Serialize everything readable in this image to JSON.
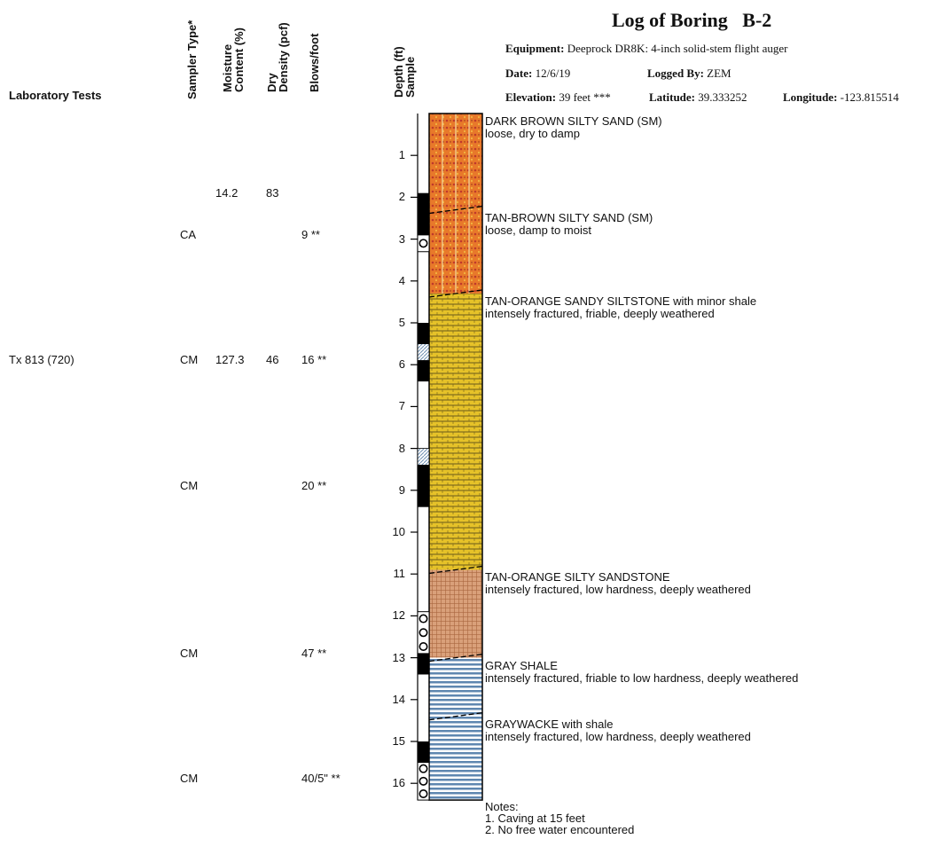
{
  "header": {
    "title": "Log of Boring",
    "boring_id": "B-2",
    "equipment_label": "Equipment:",
    "equipment_value": "Deeprock DR8K: 4-inch solid-stem flight auger",
    "date_label": "Date:",
    "date_value": "12/6/19",
    "logged_by_label": "Logged By:",
    "logged_by_value": "ZEM",
    "elevation_label": "Elevation:",
    "elevation_value": "39 feet ***",
    "latitude_label": "Latitude:",
    "latitude_value": "39.333252",
    "longitude_label": "Longitude:",
    "longitude_value": "-123.815514"
  },
  "columns": {
    "lab_tests": "Laboratory Tests",
    "sampler_type": "Sampler Type*",
    "moisture": "Moisture Content (%)",
    "moisture_line1": "Moisture",
    "moisture_line2": "Content (%)",
    "dry_density": "Dry Density (pcf)",
    "dry_line1": "Dry",
    "dry_line2": "Density (pcf)",
    "blows": "Blows/foot",
    "depth": "Depth (ft)",
    "sample": "Sample"
  },
  "lab_rows": [
    {
      "depth": 1.9,
      "lab_test": "",
      "sampler": "",
      "moisture": "14.2",
      "density": "83",
      "blows": ""
    },
    {
      "depth": 2.9,
      "lab_test": "",
      "sampler": "CA",
      "moisture": "",
      "density": "",
      "blows": "9 **"
    },
    {
      "depth": 5.9,
      "lab_test": "Tx 813 (720)",
      "sampler": "CM",
      "moisture": "127.3",
      "density": "46",
      "blows": "16 **"
    },
    {
      "depth": 8.9,
      "lab_test": "",
      "sampler": "CM",
      "moisture": "",
      "density": "",
      "blows": "20 **"
    },
    {
      "depth": 12.9,
      "lab_test": "",
      "sampler": "CM",
      "moisture": "",
      "density": "",
      "blows": "47 **"
    },
    {
      "depth": 15.9,
      "lab_test": "",
      "sampler": "CM",
      "moisture": "",
      "density": "",
      "blows": "40/5\" **"
    }
  ],
  "depth_ticks": [
    "1",
    "2",
    "3",
    "4",
    "5",
    "6",
    "7",
    "8",
    "9",
    "10",
    "11",
    "12",
    "13",
    "14",
    "15",
    "16"
  ],
  "strata": [
    {
      "name": "DARK BROWN SILTY SAND (SM)",
      "detail": "loose, dry to damp",
      "top": 0,
      "bottom": 2.3,
      "fill": "sand-orange"
    },
    {
      "name": "TAN-BROWN SILTY SAND (SM)",
      "detail": "loose, damp to moist",
      "top": 2.3,
      "bottom": 4.3,
      "fill": "sand-orange"
    },
    {
      "name": "TAN-ORANGE SANDY SILTSTONE with minor shale",
      "detail": "intensely fractured, friable, deeply weathered",
      "top": 4.3,
      "bottom": 10.9,
      "fill": "siltstone-yellow"
    },
    {
      "name": "TAN-ORANGE SILTY SANDSTONE",
      "detail": "intensely fractured, low hardness, deeply weathered",
      "top": 10.9,
      "bottom": 13.0,
      "fill": "sandstone-tan"
    },
    {
      "name": "GRAY SHALE",
      "detail": "intensely fractured, friable to low hardness, deeply weathered",
      "top": 13.0,
      "bottom": 14.4,
      "fill": "shale-gray"
    },
    {
      "name": "GRAYWACKE with shale",
      "detail": "intensely fractured, low hardness, deeply weathered",
      "top": 14.4,
      "bottom": 16.4,
      "fill": "shale-gray"
    }
  ],
  "samples": [
    {
      "top": 1.9,
      "bottom": 2.9,
      "kind": "solid"
    },
    {
      "top": 2.9,
      "bottom": 3.3,
      "kind": "ring"
    },
    {
      "top": 5.0,
      "bottom": 5.5,
      "kind": "solid"
    },
    {
      "top": 5.5,
      "bottom": 5.9,
      "kind": "hatched"
    },
    {
      "top": 5.9,
      "bottom": 6.4,
      "kind": "solid"
    },
    {
      "top": 8.0,
      "bottom": 8.4,
      "kind": "hatched"
    },
    {
      "top": 8.4,
      "bottom": 9.4,
      "kind": "solid"
    },
    {
      "top": 11.9,
      "bottom": 12.9,
      "kind": "ring"
    },
    {
      "top": 12.9,
      "bottom": 13.4,
      "kind": "solid"
    },
    {
      "top": 15.0,
      "bottom": 15.5,
      "kind": "solid"
    },
    {
      "top": 15.5,
      "bottom": 16.4,
      "kind": "ring"
    }
  ],
  "notes": {
    "title": "Notes:",
    "items": [
      "1. Caving at 15 feet",
      "2. No free water encountered"
    ]
  },
  "colors": {
    "sand-orange": "#e8792a",
    "sand-dots": "#c0392b",
    "siltstone-yellow": "#e6c229",
    "sandstone-tan": "#d9a07a",
    "shale-gray": "#5f87b0"
  }
}
